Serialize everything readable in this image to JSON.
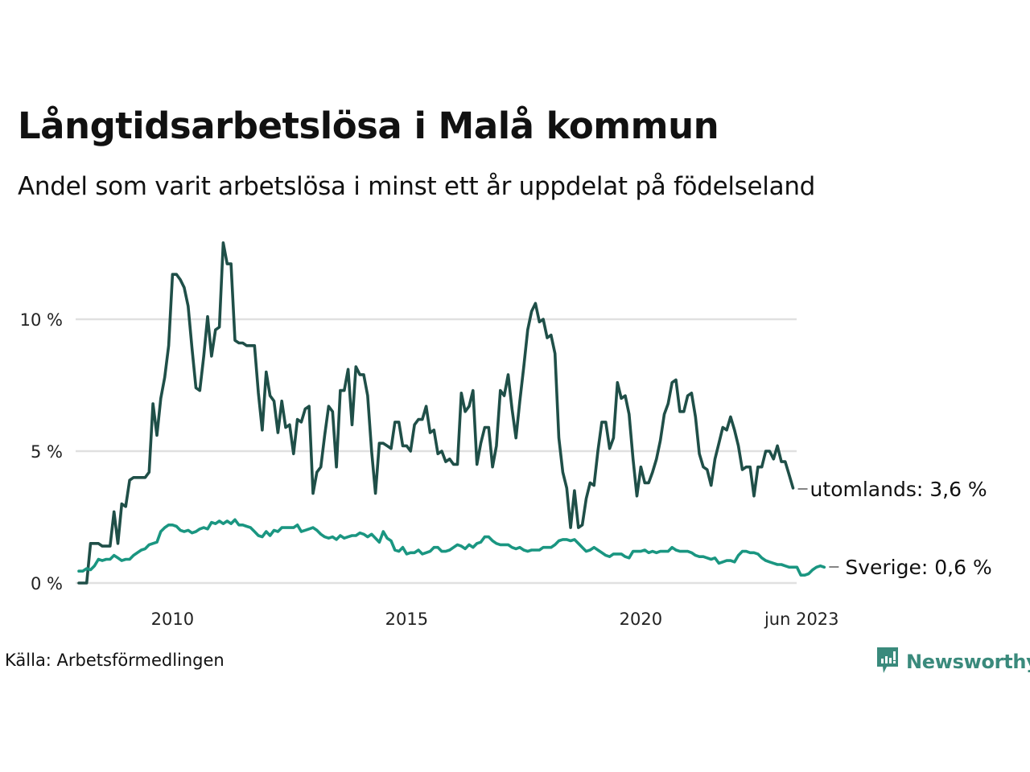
{
  "header": {
    "title": "Långtidsarbetslösa i Malå kommun",
    "subtitle": "Andel som varit arbetslösa i minst ett år uppdelat på födelseland"
  },
  "footer": {
    "source": "Källa: Arbetsförmedlingen",
    "brand": "Newsworthy",
    "brand_icon": "newsworthy-chart-bubble-icon"
  },
  "colors": {
    "utomlands": "#1f4f48",
    "sverige": "#1a9681",
    "grid": "#e0e0e0",
    "brand": "#3a8a7c"
  },
  "chart_data": {
    "type": "line",
    "title": "Långtidsarbetslösa i Malå kommun",
    "subtitle": "Andel som varit arbetslösa i minst ett år uppdelat på födelseland",
    "xlabel": "",
    "ylabel": "",
    "x_start": "2008-01",
    "x_end": "2023-06",
    "frequency": "monthly",
    "xticks": [
      {
        "label": "2010",
        "month_index": 24
      },
      {
        "label": "2015",
        "month_index": 84
      },
      {
        "label": "2020",
        "month_index": 144
      },
      {
        "label": "jun 2023",
        "month_index": 185
      }
    ],
    "yticks": [
      {
        "label": "0 %",
        "value": 0
      },
      {
        "label": "5 %",
        "value": 5
      },
      {
        "label": "10 %",
        "value": 10
      }
    ],
    "ylim": [
      0,
      13
    ],
    "grid": true,
    "legend": "direct-labels-right",
    "series": [
      {
        "name": "utomlands",
        "end_label": "utomlands: 3,6 %",
        "values": [
          0,
          0,
          0,
          1.5,
          1.5,
          1.5,
          1.4,
          1.4,
          1.4,
          2.7,
          1.5,
          3.0,
          2.9,
          3.9,
          4.0,
          4.0,
          4.0,
          4.0,
          4.2,
          6.8,
          5.6,
          7.0,
          7.8,
          9.0,
          11.7,
          11.7,
          11.5,
          11.2,
          10.5,
          8.9,
          7.4,
          7.3,
          8.6,
          10.1,
          8.6,
          9.6,
          9.7,
          12.9,
          12.1,
          12.1,
          9.2,
          9.1,
          9.1,
          9.0,
          9.0,
          9.0,
          7.2,
          5.8,
          8.0,
          7.1,
          6.9,
          5.7,
          6.9,
          5.9,
          6.0,
          4.9,
          6.2,
          6.1,
          6.6,
          6.7,
          3.4,
          4.2,
          4.4,
          5.6,
          6.7,
          6.5,
          4.4,
          7.3,
          7.3,
          8.1,
          6.0,
          8.2,
          7.9,
          7.9,
          7.1,
          5.0,
          3.4,
          5.3,
          5.3,
          5.2,
          5.1,
          6.1,
          6.1,
          5.2,
          5.2,
          5.0,
          6.0,
          6.2,
          6.2,
          6.7,
          5.7,
          5.8,
          4.9,
          5.0,
          4.6,
          4.7,
          4.5,
          4.5,
          7.2,
          6.5,
          6.7,
          7.3,
          4.5,
          5.3,
          5.9,
          5.9,
          4.4,
          5.2,
          7.3,
          7.1,
          7.9,
          6.6,
          5.5,
          6.9,
          8.2,
          9.6,
          10.3,
          10.6,
          9.9,
          10.0,
          9.3,
          9.4,
          8.7,
          5.5,
          4.2,
          3.6,
          2.1,
          3.5,
          2.1,
          2.2,
          3.2,
          3.8,
          3.7,
          5.0,
          6.1,
          6.1,
          5.1,
          5.5,
          7.6,
          7.0,
          7.1,
          6.4,
          4.7,
          3.3,
          4.4,
          3.8,
          3.8,
          4.2,
          4.7,
          5.4,
          6.4,
          6.8,
          7.6,
          7.7,
          6.5,
          6.5,
          7.1,
          7.2,
          6.3,
          4.9,
          4.4,
          4.3,
          3.7,
          4.7,
          5.3,
          5.9,
          5.8,
          6.3,
          5.8,
          5.2,
          4.3,
          4.4,
          4.4,
          3.3,
          4.4,
          4.4,
          5.0,
          5.0,
          4.7,
          5.2,
          4.6,
          4.6,
          4.1,
          3.6
        ]
      },
      {
        "name": "Sverige",
        "end_label": "Sverige: 0,6 %",
        "values": [
          0.45,
          0.45,
          0.55,
          0.5,
          0.65,
          0.9,
          0.85,
          0.9,
          0.9,
          1.05,
          0.95,
          0.85,
          0.9,
          0.9,
          1.05,
          1.15,
          1.25,
          1.3,
          1.45,
          1.5,
          1.55,
          1.95,
          2.1,
          2.2,
          2.2,
          2.15,
          2.0,
          1.95,
          2.0,
          1.9,
          1.95,
          2.05,
          2.1,
          2.05,
          2.3,
          2.25,
          2.35,
          2.25,
          2.35,
          2.25,
          2.4,
          2.2,
          2.2,
          2.15,
          2.1,
          1.95,
          1.8,
          1.75,
          1.95,
          1.8,
          2.0,
          1.95,
          2.1,
          2.1,
          2.1,
          2.1,
          2.2,
          1.95,
          2.0,
          2.05,
          2.1,
          2.0,
          1.85,
          1.75,
          1.7,
          1.75,
          1.65,
          1.8,
          1.7,
          1.75,
          1.8,
          1.8,
          1.9,
          1.85,
          1.75,
          1.85,
          1.7,
          1.55,
          1.95,
          1.7,
          1.6,
          1.25,
          1.2,
          1.35,
          1.1,
          1.15,
          1.15,
          1.25,
          1.1,
          1.15,
          1.2,
          1.35,
          1.35,
          1.2,
          1.2,
          1.25,
          1.35,
          1.45,
          1.4,
          1.3,
          1.45,
          1.35,
          1.5,
          1.55,
          1.75,
          1.75,
          1.6,
          1.5,
          1.45,
          1.45,
          1.45,
          1.35,
          1.3,
          1.35,
          1.25,
          1.2,
          1.25,
          1.25,
          1.25,
          1.35,
          1.35,
          1.35,
          1.45,
          1.6,
          1.65,
          1.65,
          1.6,
          1.65,
          1.5,
          1.35,
          1.2,
          1.25,
          1.35,
          1.25,
          1.15,
          1.05,
          1.0,
          1.1,
          1.1,
          1.1,
          1.0,
          0.95,
          1.2,
          1.2,
          1.2,
          1.25,
          1.15,
          1.2,
          1.15,
          1.2,
          1.2,
          1.2,
          1.35,
          1.25,
          1.2,
          1.2,
          1.2,
          1.15,
          1.05,
          1.0,
          1.0,
          0.95,
          0.9,
          0.95,
          0.75,
          0.8,
          0.85,
          0.85,
          0.8,
          1.05,
          1.2,
          1.2,
          1.15,
          1.15,
          1.1,
          0.95,
          0.85,
          0.8,
          0.75,
          0.7,
          0.7,
          0.65,
          0.6,
          0.6,
          0.6,
          0.3,
          0.3,
          0.35,
          0.5,
          0.6,
          0.65,
          0.6
        ]
      }
    ]
  }
}
